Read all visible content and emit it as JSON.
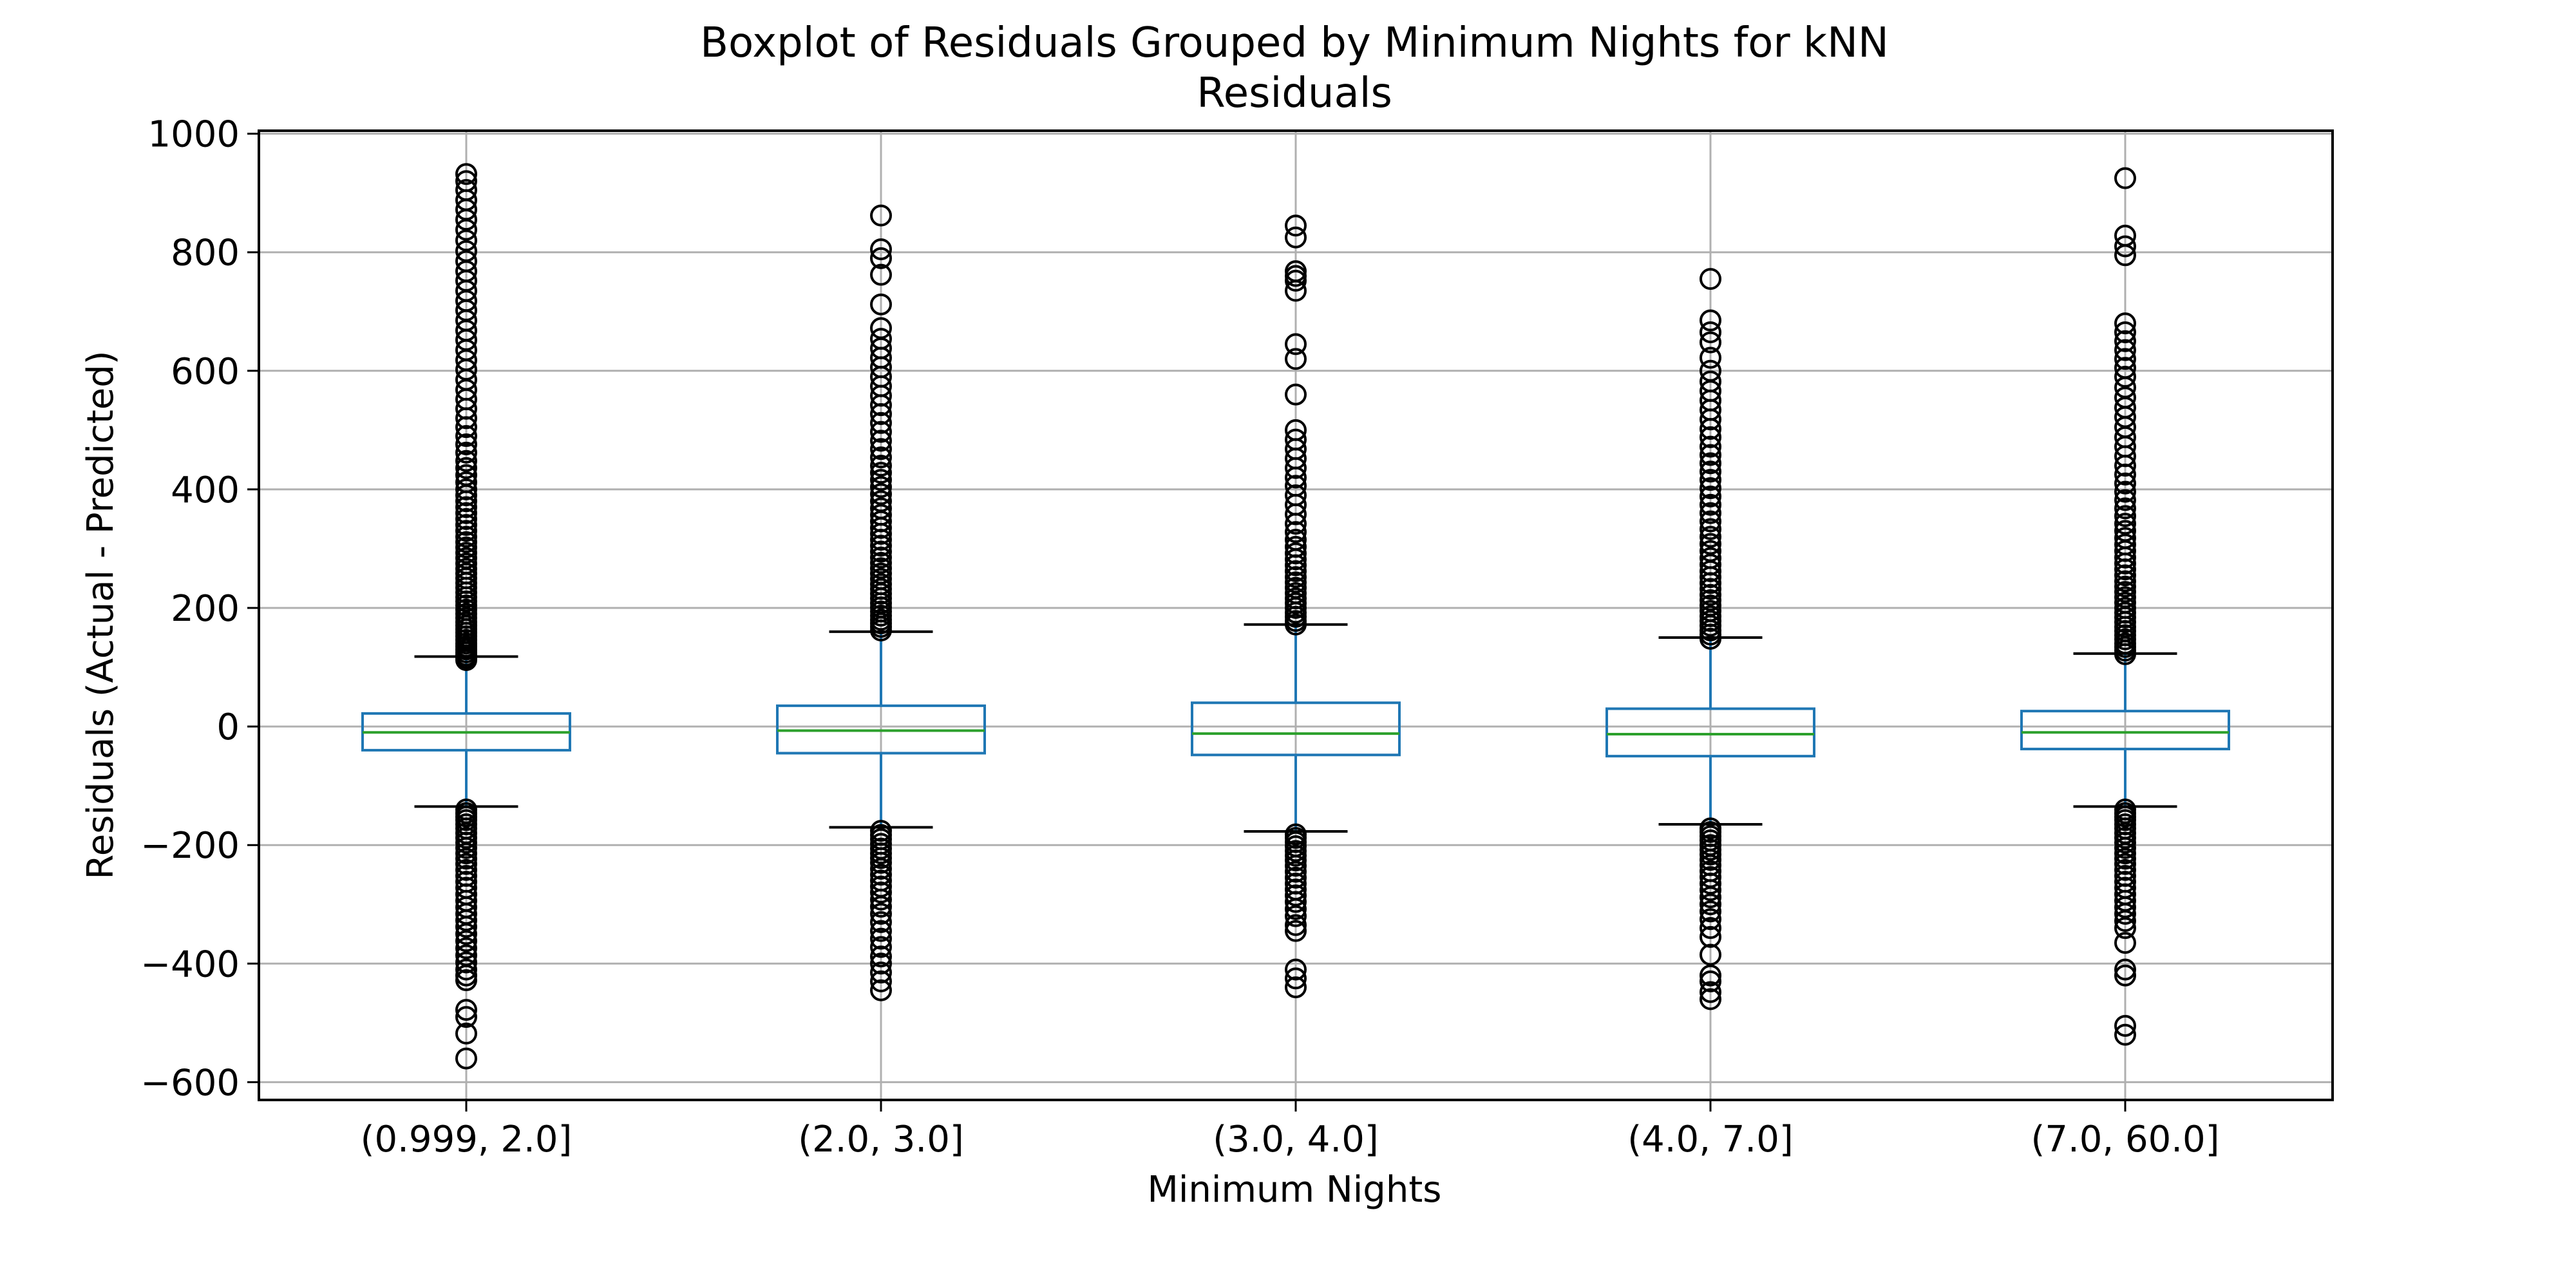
{
  "chart_data": {
    "type": "boxplot",
    "title": "Boxplot of Residuals Grouped by Minimum Nights for kNN",
    "subtitle": "Residuals",
    "xlabel": "Minimum Nights",
    "ylabel": "Residuals (Actual - Predicted)",
    "ylim": [
      -630,
      1005
    ],
    "yticks": [
      -600,
      -400,
      -200,
      0,
      200,
      400,
      600,
      800,
      1000
    ],
    "ytick_labels": [
      "−600",
      "−400",
      "−200",
      "0",
      "200",
      "400",
      "600",
      "800",
      "1000"
    ],
    "grid": true,
    "colors": {
      "box": "#1f77b4",
      "median": "#2ca02c",
      "flier": "#000000",
      "grid": "#b0b0b0"
    },
    "categories": [
      "(0.999, 2.0]",
      "(2.0, 3.0]",
      "(3.0, 4.0]",
      "(4.0, 7.0]",
      "(7.0, 60.0]"
    ],
    "boxes": [
      {
        "category": "(0.999, 2.0]",
        "whisker_low": -135,
        "q1": -40,
        "median": -10,
        "q3": 22,
        "whisker_high": 118,
        "fliers_high": [
          112,
          116,
          120,
          125,
          130,
          135,
          140,
          146,
          152,
          158,
          164,
          170,
          176,
          183,
          190,
          197,
          204,
          211,
          218,
          226,
          234,
          242,
          250,
          258,
          266,
          275,
          284,
          293,
          302,
          311,
          320,
          330,
          340,
          350,
          360,
          370,
          380,
          390,
          400,
          412,
          424,
          436,
          448,
          462,
          476,
          490,
          505,
          520,
          536,
          552,
          568,
          585,
          602,
          618,
          635,
          652,
          668,
          685,
          702,
          718,
          735,
          752,
          768,
          785,
          802,
          820,
          838,
          855,
          872,
          888,
          905,
          920,
          932
        ],
        "fliers_low": [
          -140,
          -146,
          -152,
          -158,
          -165,
          -172,
          -180,
          -188,
          -196,
          -205,
          -214,
          -223,
          -232,
          -242,
          -252,
          -262,
          -272,
          -283,
          -294,
          -305,
          -316,
          -327,
          -338,
          -350,
          -362,
          -374,
          -386,
          -398,
          -410,
          -420,
          -428,
          -478,
          -490,
          -518,
          -560
        ]
      },
      {
        "category": "(2.0, 3.0]",
        "whisker_low": -170,
        "q1": -45,
        "median": -7,
        "q3": 35,
        "whisker_high": 160,
        "fliers_high": [
          162,
          168,
          174,
          180,
          187,
          194,
          201,
          208,
          216,
          224,
          232,
          240,
          249,
          258,
          267,
          276,
          285,
          295,
          305,
          315,
          325,
          335,
          346,
          357,
          368,
          380,
          392,
          404,
          416,
          428,
          440,
          454,
          468,
          482,
          497,
          512,
          527,
          542,
          558,
          574,
          590,
          606,
          622,
          638,
          654,
          672,
          712,
          762,
          790,
          805,
          862
        ],
        "fliers_low": [
          -176,
          -183,
          -190,
          -198,
          -206,
          -214,
          -222,
          -230,
          -240,
          -250,
          -260,
          -270,
          -280,
          -292,
          -304,
          -316,
          -330,
          -345,
          -358,
          -372,
          -388,
          -400,
          -415,
          -430,
          -445
        ]
      },
      {
        "category": "(3.0, 4.0]",
        "whisker_low": -177,
        "q1": -48,
        "median": -12,
        "q3": 40,
        "whisker_high": 172,
        "fliers_high": [
          172,
          178,
          185,
          192,
          200,
          208,
          216,
          225,
          234,
          243,
          252,
          262,
          272,
          282,
          292,
          303,
          315,
          328,
          342,
          358,
          374,
          390,
          406,
          420,
          436,
          452,
          468,
          484,
          500,
          560,
          620,
          645,
          735,
          752,
          760,
          768,
          825,
          845
        ],
        "fliers_low": [
          -182,
          -188,
          -195,
          -202,
          -210,
          -218,
          -226,
          -235,
          -245,
          -255,
          -265,
          -275,
          -285,
          -296,
          -308,
          -320,
          -335,
          -345,
          -410,
          -425,
          -440
        ]
      },
      {
        "category": "(4.0, 7.0]",
        "whisker_low": -165,
        "q1": -50,
        "median": -13,
        "q3": 30,
        "whisker_high": 150,
        "fliers_high": [
          148,
          155,
          162,
          170,
          178,
          186,
          195,
          204,
          213,
          222,
          232,
          242,
          252,
          262,
          273,
          284,
          296,
          308,
          320,
          333,
          346,
          360,
          374,
          388,
          402,
          416,
          430,
          444,
          458,
          472,
          488,
          502,
          518,
          534,
          550,
          566,
          582,
          600,
          622,
          648,
          665,
          685,
          755
        ],
        "fliers_low": [
          -172,
          -178,
          -185,
          -192,
          -200,
          -208,
          -216,
          -225,
          -234,
          -244,
          -254,
          -265,
          -276,
          -288,
          -300,
          -312,
          -325,
          -340,
          -355,
          -385,
          -420,
          -430,
          -448,
          -460
        ]
      },
      {
        "category": "(7.0, 60.0]",
        "whisker_low": -135,
        "q1": -38,
        "median": -10,
        "q3": 26,
        "whisker_high": 123,
        "fliers_high": [
          122,
          128,
          134,
          140,
          147,
          154,
          161,
          168,
          176,
          184,
          192,
          200,
          209,
          218,
          227,
          236,
          245,
          255,
          265,
          275,
          285,
          296,
          307,
          318,
          330,
          342,
          355,
          368,
          382,
          396,
          410,
          425,
          440,
          456,
          472,
          488,
          505,
          522,
          538,
          555,
          572,
          590,
          605,
          620,
          635,
          650,
          665,
          680,
          795,
          810,
          828,
          925
        ],
        "fliers_low": [
          -140,
          -146,
          -152,
          -158,
          -165,
          -172,
          -180,
          -188,
          -196,
          -205,
          -214,
          -223,
          -232,
          -242,
          -252,
          -262,
          -272,
          -283,
          -294,
          -305,
          -316,
          -328,
          -340,
          -365,
          -410,
          -420,
          -505,
          -520
        ]
      }
    ]
  }
}
